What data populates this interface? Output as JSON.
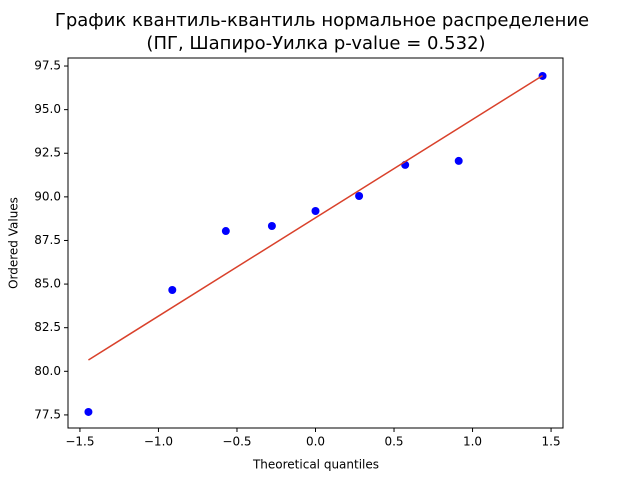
{
  "chart_data": {
    "type": "scatter",
    "title": [
      "График квантиль-квантиль нормальное распределение",
      "(ПГ, Шапиро-Уилка p-value = 0.532)"
    ],
    "x_label": "Theoretical quantiles",
    "y_label": "Ordered Values",
    "series": [
      {
        "mode": "markers",
        "color": "#0000ff",
        "x": [
          -1.4459,
          -0.9119,
          -0.571,
          -0.2776,
          0,
          0.2776,
          0.571,
          0.9119,
          1.4459
        ],
        "values": [
          77.67,
          84.66,
          88.04,
          88.33,
          89.19,
          90.05,
          91.83,
          92.06,
          96.93
        ]
      },
      {
        "mode": "line",
        "color": "#d9412b",
        "x": [
          -1.4459,
          1.4459
        ],
        "values": [
          80.65,
          96.95
        ]
      }
    ],
    "xlim": [
      -1.576,
      1.576
    ],
    "ylim": [
      76.75,
      97.96
    ],
    "xticks": [
      {
        "value": -1.5,
        "label": "−1.5"
      },
      {
        "value": -1.0,
        "label": "−1.0"
      },
      {
        "value": -0.5,
        "label": "−0.5"
      },
      {
        "value": 0,
        "label": "0.0"
      },
      0.5,
      {
        "value": 1.0,
        "label": "1.0"
      },
      1.5
    ],
    "yticks": [
      77.5,
      {
        "value": 80,
        "label": "80.0"
      },
      82.5,
      {
        "value": 85,
        "label": "85.0"
      },
      87.5,
      {
        "value": 90,
        "label": "90.0"
      },
      92.5,
      {
        "value": 95,
        "label": "95.0"
      },
      97.5
    ],
    "grid": false
  }
}
